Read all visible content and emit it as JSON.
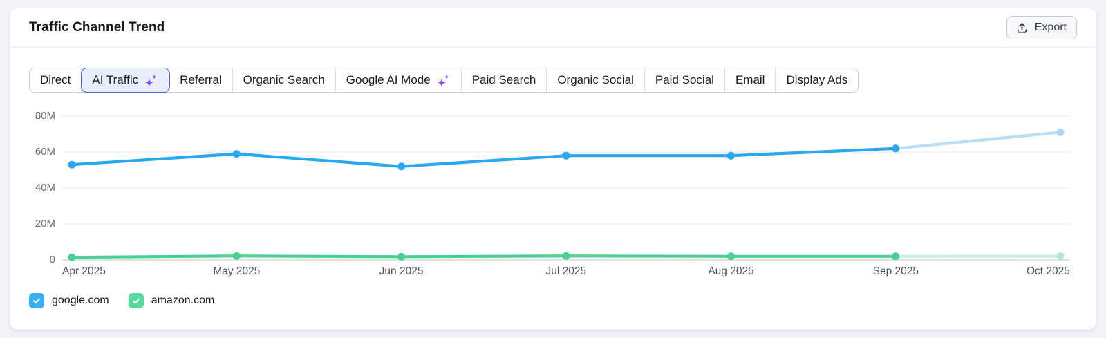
{
  "header": {
    "title": "Traffic Channel Trend",
    "export_label": "Export"
  },
  "tabs": [
    {
      "label": "Direct",
      "selected": false,
      "sparkle": false
    },
    {
      "label": "AI Traffic",
      "selected": true,
      "sparkle": true
    },
    {
      "label": "Referral",
      "selected": false,
      "sparkle": false
    },
    {
      "label": "Organic Search",
      "selected": false,
      "sparkle": false
    },
    {
      "label": "Google AI Mode",
      "selected": false,
      "sparkle": true
    },
    {
      "label": "Paid Search",
      "selected": false,
      "sparkle": false
    },
    {
      "label": "Organic Social",
      "selected": false,
      "sparkle": false
    },
    {
      "label": "Paid Social",
      "selected": false,
      "sparkle": false
    },
    {
      "label": "Email",
      "selected": false,
      "sparkle": false
    },
    {
      "label": "Display Ads",
      "selected": false,
      "sparkle": false
    }
  ],
  "chart_data": {
    "type": "line",
    "x": [
      "Apr 2025",
      "May 2025",
      "Jun 2025",
      "Jul 2025",
      "Aug 2025",
      "Sep 2025",
      "Oct 2025"
    ],
    "y_ticks": [
      {
        "label": "80M",
        "value": 80
      },
      {
        "label": "60M",
        "value": 60
      },
      {
        "label": "40M",
        "value": 40
      },
      {
        "label": "20M",
        "value": 20
      },
      {
        "label": "0",
        "value": 0
      }
    ],
    "unit": "M",
    "ylim": [
      0,
      80
    ],
    "grid": "horizontal",
    "legend_position": "bottom-left",
    "series": [
      {
        "name": "google.com",
        "color": "#2aa7ef",
        "forecast_color": "#b9dff8",
        "forecast_dot_color": "#a8d9f8",
        "values": [
          53,
          59,
          52,
          58,
          58,
          62,
          71
        ],
        "last_segment_forecast": true
      },
      {
        "name": "amazon.com",
        "color": "#49d193",
        "forecast_color": "#c6eedb",
        "forecast_dot_color": "#b4e8d0",
        "values": [
          1.5,
          2.2,
          1.8,
          2.2,
          2.0,
          2.0,
          2.1
        ],
        "last_segment_forecast": true
      }
    ]
  },
  "legend": {
    "items": [
      {
        "label": "google.com",
        "checked": true,
        "color": "#38aef3"
      },
      {
        "label": "amazon.com",
        "checked": true,
        "color": "#55d99e"
      }
    ]
  },
  "colors": {
    "page_background": "#f1f3f8",
    "card_background": "#ffffff",
    "selected_tab_background": "#e9eefc",
    "selected_tab_border": "#4a62d8",
    "sparkle_purple": "#8b4fe9",
    "gridline": "#ebedf1",
    "axis_baseline": "#d6dade",
    "y_label_text": "#646b7a",
    "x_label_text": "#4a5161"
  }
}
